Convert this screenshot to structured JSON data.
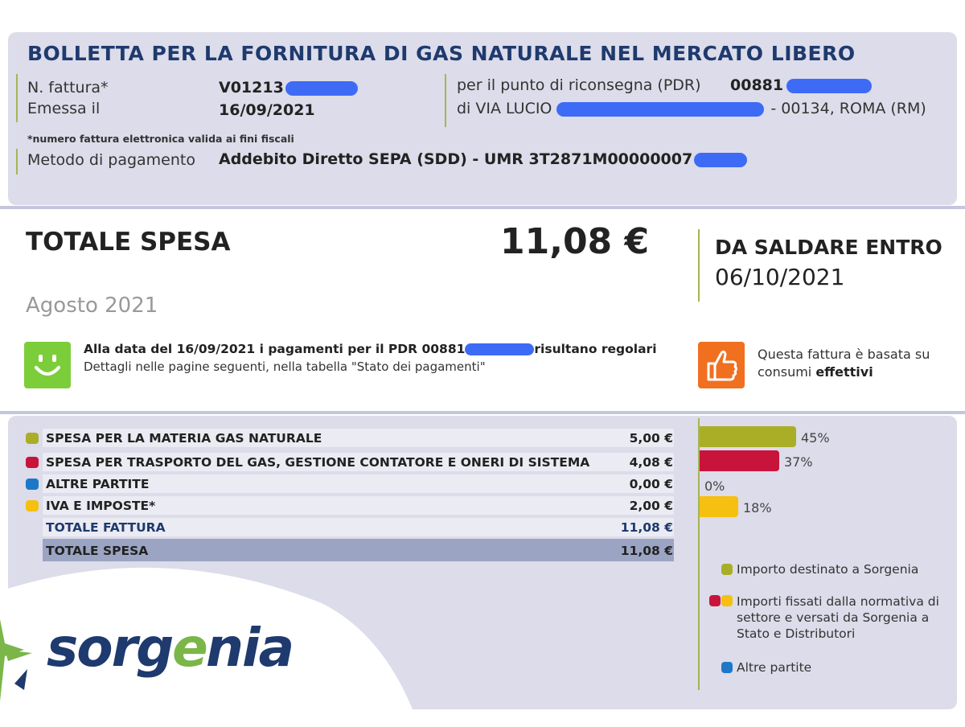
{
  "header": {
    "title": "BOLLETTA PER LA FORNITURA DI GAS NATURALE NEL MERCATO LIBERO",
    "invoice_number_label": "N. fattura*",
    "invoice_number": "V01213",
    "issued_label": "Emessa il",
    "issued_date": "16/09/2021",
    "pdr_label": "per il punto di riconsegna (PDR)",
    "pdr_number": "00881",
    "address_prefix": "di VIA LUCIO",
    "address_suffix": "- 00134, ROMA (RM)",
    "footnote": "*numero fattura elettronica valida ai fini fiscali",
    "payment_method_label": "Metodo di pagamento",
    "payment_method": "Addebito Diretto SEPA (SDD) - UMR 3T2871M00000007"
  },
  "summary": {
    "total_label": "TOTALE SPESA",
    "total_amount": "11,08 €",
    "due_label": "DA SALDARE ENTRO",
    "due_date": "06/10/2021",
    "period": "Agosto 2021"
  },
  "notices": {
    "payments_prefix": "Alla data del 16/09/2021 i pagamenti per il PDR 00881",
    "payments_suffix": "risultano regolari",
    "payments_detail": "Dettagli nelle pagine seguenti, nella tabella \"Stato dei pagamenti\"",
    "consumption_line1": "Questa fattura è basata su",
    "consumption_prefix": "consumi",
    "consumption_bold": "effettivi"
  },
  "breakdown": {
    "rows": [
      {
        "label": "SPESA PER LA MATERIA GAS NATURALE",
        "value": "5,00 €",
        "color": "#aaae27"
      },
      {
        "label": "SPESA PER TRASPORTO DEL GAS, GESTIONE CONTATORE E ONERI DI SISTEMA",
        "value": "4,08 €",
        "color": "#c8143a"
      },
      {
        "label": "ALTRE PARTITE",
        "value": "0,00 €",
        "color": "#1e78c8"
      },
      {
        "label": "IVA E IMPOSTE*",
        "value": "2,00 €",
        "color": "#f5c010"
      }
    ],
    "total_invoice_label": "TOTALE FATTURA",
    "total_invoice_value": "11,08 €",
    "total_spend_label": "TOTALE SPESA",
    "total_spend_value": "11,08 €"
  },
  "chart_data": {
    "type": "bar",
    "orientation": "horizontal",
    "categories": [
      "SPESA PER LA MATERIA GAS NATURALE",
      "SPESA PER TRASPORTO DEL GAS, GESTIONE CONTATORE E ONERI DI SISTEMA",
      "ALTRE PARTITE",
      "IVA E IMPOSTE*"
    ],
    "values": [
      45,
      37,
      0,
      18
    ],
    "labels": [
      "45%",
      "37%",
      "0%",
      "18%"
    ],
    "colors": [
      "#aaae27",
      "#c8143a",
      "#1e78c8",
      "#f5c010"
    ],
    "title": "",
    "xlabel": "",
    "ylabel": "",
    "grid": false
  },
  "legend": [
    {
      "text": "Importo destinato a Sorgenia",
      "colors": [
        "#aaae27"
      ]
    },
    {
      "text": "Importi fissati dalla normativa di settore e versati da Sorgenia a Stato e Distributori",
      "colors": [
        "#c8143a",
        "#f5c010"
      ]
    },
    {
      "text": "Altre partite",
      "colors": [
        "#1e78c8"
      ]
    }
  ],
  "brand": {
    "name": "sorgenia",
    "colors": {
      "navy": "#1e3a6e",
      "green": "#7ab648",
      "accent_bar": "#a8b454"
    }
  }
}
